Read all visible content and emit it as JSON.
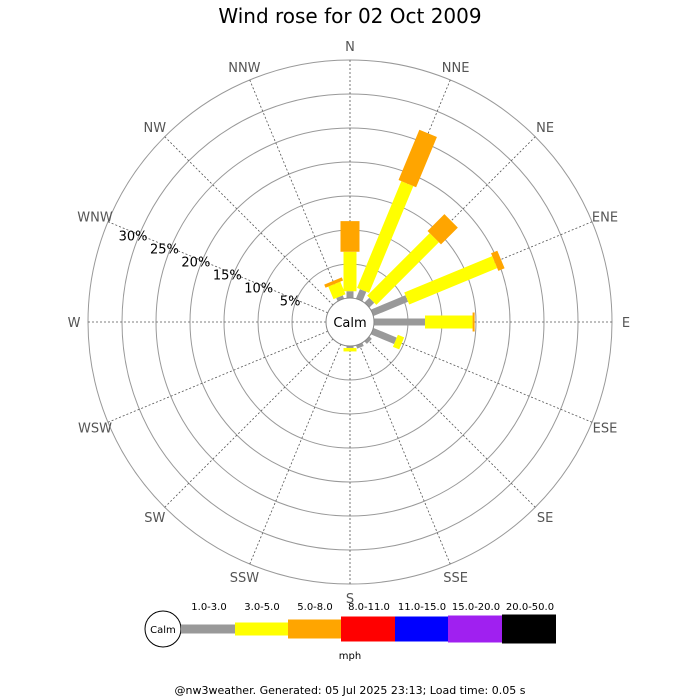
{
  "chart_data": {
    "type": "wind-rose",
    "title": "Wind rose for 02 Oct 2009",
    "calm_label": "Calm",
    "directions": [
      "N",
      "NNE",
      "NE",
      "ENE",
      "E",
      "ESE",
      "SE",
      "SSE",
      "S",
      "SSW",
      "SW",
      "WSW",
      "W",
      "WNW",
      "NW",
      "NNW"
    ],
    "ring_labels": [
      "5%",
      "10%",
      "15%",
      "20%",
      "25%",
      "30%"
    ],
    "ring_values": [
      5,
      10,
      15,
      20,
      25,
      30
    ],
    "rmax": 35,
    "speed_bins": [
      {
        "label": "1.0-3.0",
        "color": "#999999"
      },
      {
        "label": "3.0-5.0",
        "color": "#ffff00"
      },
      {
        "label": "5.0-8.0",
        "color": "#ffa500"
      },
      {
        "label": "8.0-11.0",
        "color": "#ff0000"
      },
      {
        "label": "11.0-15.0",
        "color": "#0000ff"
      },
      {
        "label": "15.0-20.0",
        "color": "#a020f0"
      },
      {
        "label": "20.0-50.0",
        "color": "#000000"
      }
    ],
    "unit": "mph",
    "calm_percent": 0,
    "values": {
      "N": [
        1.0,
        5.8,
        4.5,
        0,
        0,
        0,
        0
      ],
      "NNE": [
        1.5,
        17.0,
        8.0,
        0,
        0,
        0,
        0
      ],
      "NE": [
        1.0,
        13.0,
        3.5,
        0,
        0,
        0,
        0
      ],
      "ENE": [
        5.5,
        14.0,
        1.0,
        0,
        0,
        0,
        0
      ],
      "E": [
        7.5,
        7.0,
        0.3,
        0,
        0,
        0,
        0
      ],
      "ESE": [
        3.7,
        1.0,
        0,
        0,
        0,
        0,
        0
      ],
      "SE": [
        0.5,
        0,
        0,
        0,
        0,
        0,
        0
      ],
      "SSE": [
        0.5,
        0,
        0,
        0,
        0,
        0,
        0
      ],
      "S": [
        0.3,
        0.5,
        0,
        0,
        0,
        0,
        0
      ],
      "SSW": [
        0,
        0,
        0,
        0,
        0,
        0,
        0
      ],
      "SW": [
        0,
        0,
        0,
        0,
        0,
        0,
        0
      ],
      "WSW": [
        0,
        0,
        0,
        0,
        0,
        0,
        0
      ],
      "W": [
        0,
        0,
        0,
        0,
        0,
        0,
        0
      ],
      "WNW": [
        0,
        0,
        0,
        0,
        0,
        0,
        0
      ],
      "NW": [
        0,
        0,
        0,
        0,
        0,
        0,
        0
      ],
      "NNW": [
        0.5,
        2.0,
        0.5,
        0,
        0,
        0,
        0
      ]
    }
  },
  "footer": "@nw3weather. Generated: 05 Jul 2025 23:13; Load time: 0.05 s"
}
